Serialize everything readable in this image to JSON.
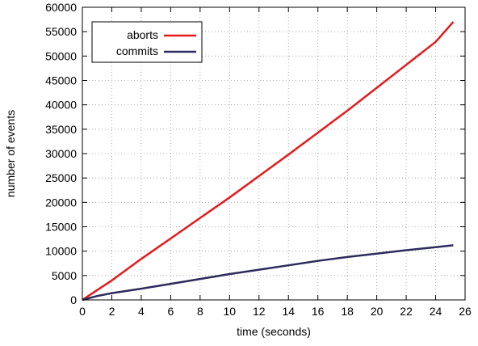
{
  "chart_data": {
    "type": "line",
    "xlabel": "time (seconds)",
    "ylabel": "number of events",
    "xlim": [
      0,
      26
    ],
    "ylim": [
      0,
      60000
    ],
    "xticks": [
      0,
      2,
      4,
      6,
      8,
      10,
      12,
      14,
      16,
      18,
      20,
      22,
      24,
      26
    ],
    "yticks": [
      0,
      5000,
      10000,
      15000,
      20000,
      25000,
      30000,
      35000,
      40000,
      45000,
      50000,
      55000,
      60000
    ],
    "grid": true,
    "legend_position": "top-left",
    "series": [
      {
        "name": "aborts",
        "color": "#e41a1c",
        "x": [
          0,
          1,
          2,
          4,
          6,
          8,
          10,
          12,
          14,
          16,
          18,
          20,
          22,
          24,
          25.2
        ],
        "y": [
          0,
          2000,
          4000,
          8400,
          12600,
          16800,
          21000,
          25400,
          29800,
          34300,
          38800,
          43500,
          48200,
          52900,
          57000
        ]
      },
      {
        "name": "commits",
        "color": "#2b2b5e",
        "x": [
          0,
          1,
          2,
          4,
          6,
          8,
          10,
          12,
          14,
          16,
          18,
          20,
          22,
          24,
          25.2
        ],
        "y": [
          0,
          800,
          1400,
          2300,
          3300,
          4300,
          5300,
          6200,
          7100,
          8000,
          8800,
          9500,
          10200,
          10800,
          11200
        ]
      }
    ]
  }
}
